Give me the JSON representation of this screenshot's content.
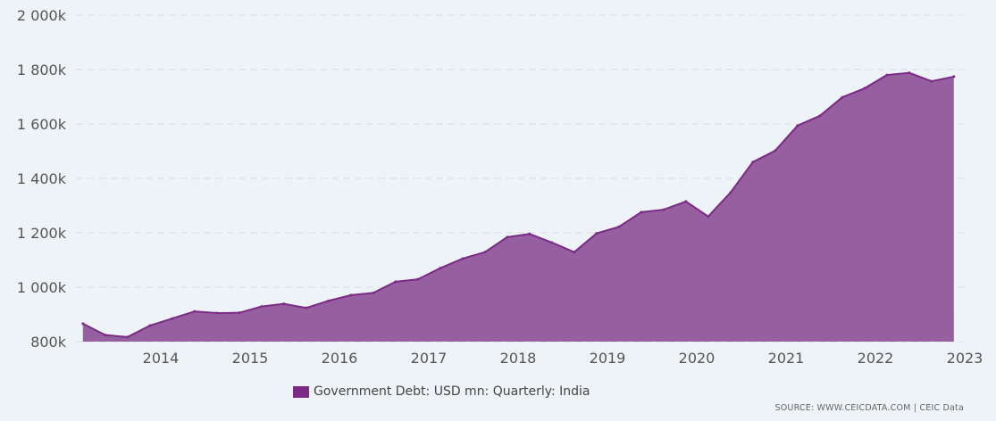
{
  "chart_data": {
    "type": "area",
    "title": "",
    "xlabel": "",
    "ylabel": "",
    "ylim": [
      800,
      2000
    ],
    "y_ticks": [
      "800k",
      "1 000k",
      "1 200k",
      "1 400k",
      "1 600k",
      "1 800k",
      "2 000k"
    ],
    "y_tick_values": [
      800,
      1000,
      1200,
      1400,
      1600,
      1800,
      2000
    ],
    "x_ticks": [
      "2014",
      "2015",
      "2016",
      "2017",
      "2018",
      "2019",
      "2020",
      "2021",
      "2022",
      "2023"
    ],
    "grid": true,
    "legend_position": "bottom",
    "x": [
      "2013-03",
      "2013-06",
      "2013-09",
      "2013-12",
      "2014-03",
      "2014-06",
      "2014-09",
      "2014-12",
      "2015-03",
      "2015-06",
      "2015-09",
      "2015-12",
      "2016-03",
      "2016-06",
      "2016-09",
      "2016-12",
      "2017-03",
      "2017-06",
      "2017-09",
      "2017-12",
      "2018-03",
      "2018-06",
      "2018-09",
      "2018-12",
      "2019-03",
      "2019-06",
      "2019-09",
      "2019-12",
      "2020-03",
      "2020-06",
      "2020-09",
      "2020-12",
      "2021-03",
      "2021-06",
      "2021-09",
      "2021-12",
      "2022-03",
      "2022-06",
      "2022-09",
      "2022-12"
    ],
    "series": [
      {
        "name": "Government Debt: USD mn: Quarterly: India",
        "color": "#7b2a85",
        "fill": "#965fa0",
        "values": [
          866,
          824,
          817,
          859,
          885,
          911,
          905,
          906,
          929,
          939,
          924,
          950,
          971,
          979,
          1020,
          1029,
          1070,
          1105,
          1129,
          1184,
          1196,
          1164,
          1129,
          1198,
          1222,
          1276,
          1285,
          1315,
          1260,
          1348,
          1460,
          1502,
          1594,
          1630,
          1698,
          1731,
          1780,
          1788,
          1757,
          1774
        ]
      }
    ]
  },
  "legend": {
    "label": "Government Debt: USD mn: Quarterly: India",
    "color": "#7b2a85"
  },
  "source": "SOURCE: WWW.CEICDATA.COM | CEIC Data"
}
